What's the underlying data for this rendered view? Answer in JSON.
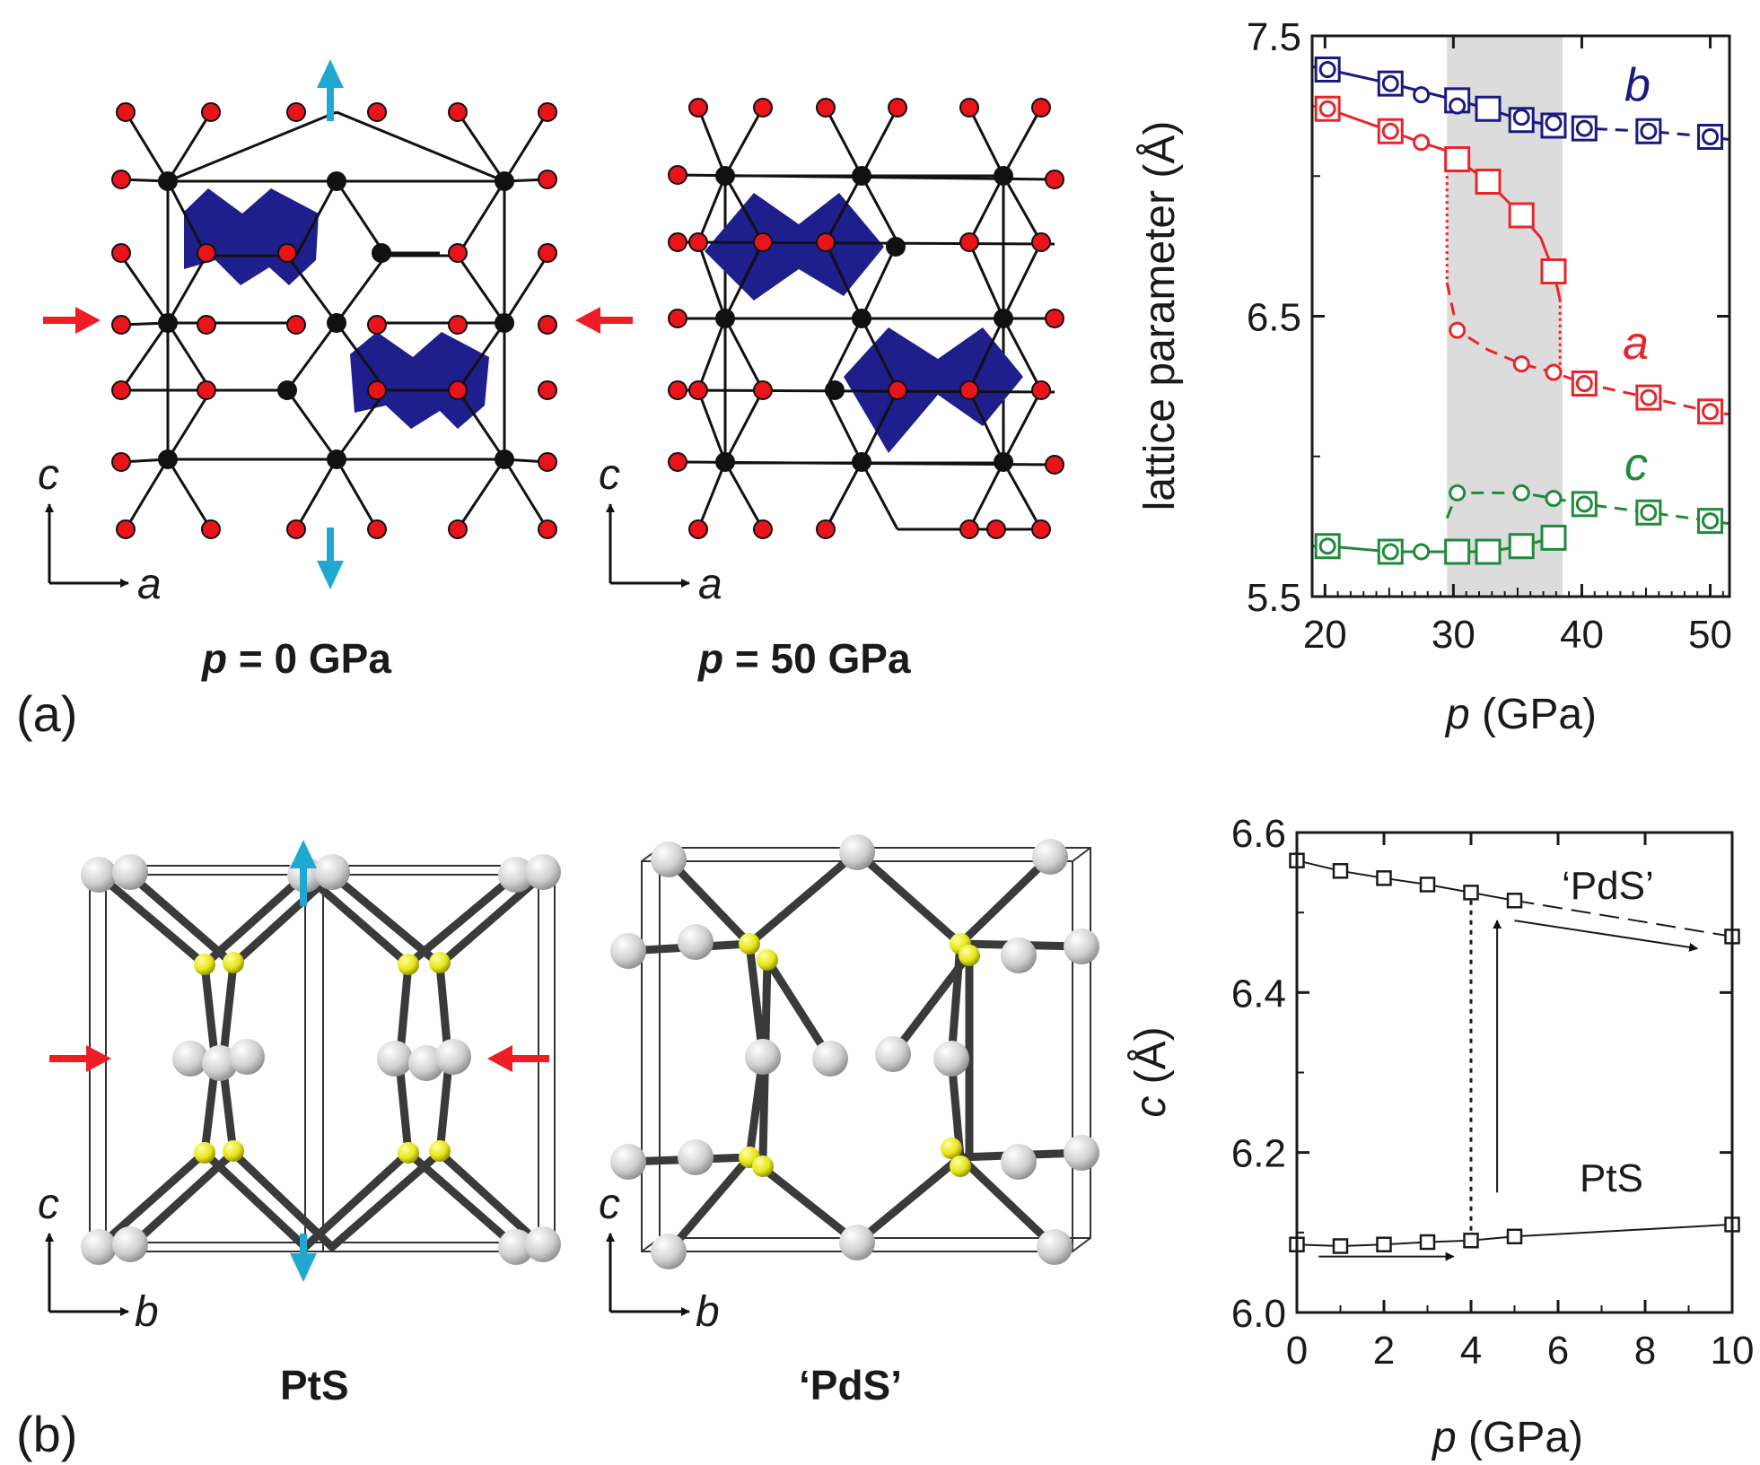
{
  "figure": {
    "panel_a_label": "(a)",
    "panel_b_label": "(b)",
    "structure_a_left_caption": {
      "var": "p",
      "rest": " = 0 GPa"
    },
    "structure_a_right_caption": {
      "var": "p",
      "rest": " = 50 GPa"
    },
    "structure_b_left_caption": "PtS",
    "structure_b_right_caption": "‘PdS’",
    "axes_a": {
      "vertical": "c",
      "horizontal": "a"
    },
    "axes_b": {
      "vertical": "c",
      "horizontal": "b"
    },
    "colors": {
      "a_series": "#e8262a",
      "b_series": "#1a1a80",
      "c_series": "#1e8a3a",
      "shade": "#dcdcdc",
      "polyhedra": "#1e1e8c",
      "pressure_arrow_red": "#ee1c24",
      "pressure_arrow_cyan": "#20a8d0",
      "atom_red": "#e8141a",
      "atom_black": "#111111",
      "atom_yellow": "#e6e619",
      "atom_grey": "#d8d8d8"
    }
  },
  "chart_data": [
    {
      "type": "line",
      "xlabel": {
        "var": "p",
        "rest": " (GPa)"
      },
      "ylabel": "lattice parameter (Å)",
      "xlim": [
        19,
        51.5
      ],
      "ylim": [
        5.5,
        7.5
      ],
      "xticks": [
        "20",
        "30",
        "40",
        "50"
      ],
      "yticks": [
        "5.5",
        "6.5",
        "7.5"
      ],
      "shaded_region": [
        29.5,
        38.5
      ],
      "series": [
        {
          "name": "b",
          "color_key": "b_series",
          "squares": [
            [
              20.2,
              7.38
            ],
            [
              25.1,
              7.33
            ],
            [
              30.3,
              7.27
            ],
            [
              32.7,
              7.24
            ],
            [
              35.3,
              7.2
            ],
            [
              37.8,
              7.18
            ],
            [
              40.2,
              7.17
            ],
            [
              45.2,
              7.16
            ],
            [
              50,
              7.14
            ]
          ],
          "circles": [
            [
              20.2,
              7.38
            ],
            [
              25.1,
              7.33
            ],
            [
              27.5,
              7.29
            ],
            [
              30.3,
              7.25
            ],
            [
              35.3,
              7.21
            ],
            [
              37.8,
              7.19
            ],
            [
              40.2,
              7.17
            ],
            [
              45.2,
              7.16
            ],
            [
              50,
              7.14
            ]
          ],
          "line_solid": [
            [
              19,
              7.39
            ],
            [
              20.2,
              7.38
            ],
            [
              25.1,
              7.33
            ],
            [
              30.3,
              7.27
            ],
            [
              32.7,
              7.24
            ],
            [
              35.3,
              7.2
            ],
            [
              37.8,
              7.18
            ]
          ],
          "line_dashed": [
            [
              37.8,
              7.18
            ],
            [
              40.2,
              7.17
            ],
            [
              45.2,
              7.16
            ],
            [
              50,
              7.14
            ],
            [
              51.5,
              7.13
            ]
          ]
        },
        {
          "name": "a",
          "color_key": "a_series",
          "squares": [
            [
              20.2,
              7.24
            ],
            [
              25.1,
              7.16
            ],
            [
              30.3,
              7.06
            ],
            [
              32.7,
              6.98
            ],
            [
              35.3,
              6.86
            ],
            [
              37.8,
              6.66
            ],
            [
              40.2,
              6.26
            ],
            [
              45.2,
              6.21
            ],
            [
              50,
              6.16
            ]
          ],
          "circles": [
            [
              20.2,
              7.24
            ],
            [
              25.1,
              7.16
            ],
            [
              27.5,
              7.12
            ],
            [
              30.3,
              6.45
            ],
            [
              35.3,
              6.33
            ],
            [
              37.8,
              6.3
            ],
            [
              40.2,
              6.26
            ],
            [
              45.2,
              6.21
            ],
            [
              50,
              6.16
            ]
          ],
          "line_solid": [
            [
              19,
              7.25
            ],
            [
              20.2,
              7.24
            ],
            [
              25.1,
              7.16
            ],
            [
              27.5,
              7.12
            ],
            [
              29.5,
              7.09
            ],
            [
              30.3,
              7.06
            ],
            [
              32.7,
              6.98
            ],
            [
              35.3,
              6.86
            ],
            [
              36.8,
              6.78
            ],
            [
              37.8,
              6.66
            ],
            [
              38.3,
              6.56
            ]
          ],
          "line_dashed": [
            [
              29.5,
              6.62
            ],
            [
              30.3,
              6.45
            ],
            [
              32.7,
              6.38
            ],
            [
              35.3,
              6.33
            ],
            [
              37.8,
              6.3
            ],
            [
              40.2,
              6.26
            ],
            [
              45.2,
              6.21
            ],
            [
              50,
              6.16
            ],
            [
              51.5,
              6.15
            ]
          ],
          "line_dotted": [
            [
              29.5,
              7.09
            ],
            [
              29.5,
              6.62
            ],
            [
              38.3,
              6.56
            ],
            [
              38.3,
              6.3
            ]
          ]
        },
        {
          "name": "c",
          "color_key": "c_series",
          "squares": [
            [
              20.2,
              5.68
            ],
            [
              25.1,
              5.66
            ],
            [
              30.3,
              5.66
            ],
            [
              32.7,
              5.66
            ],
            [
              35.3,
              5.68
            ],
            [
              37.8,
              5.71
            ],
            [
              40.2,
              5.83
            ],
            [
              45.2,
              5.8
            ],
            [
              50,
              5.77
            ]
          ],
          "circles": [
            [
              20.2,
              5.68
            ],
            [
              25.1,
              5.66
            ],
            [
              27.5,
              5.66
            ],
            [
              30.3,
              5.87
            ],
            [
              35.3,
              5.87
            ],
            [
              37.8,
              5.85
            ],
            [
              40.2,
              5.83
            ],
            [
              45.2,
              5.8
            ],
            [
              50,
              5.77
            ]
          ],
          "line_solid": [
            [
              19,
              5.68
            ],
            [
              20.2,
              5.68
            ],
            [
              25.1,
              5.66
            ],
            [
              29.5,
              5.66
            ],
            [
              32.7,
              5.66
            ],
            [
              35.3,
              5.68
            ],
            [
              37.8,
              5.71
            ]
          ],
          "line_dashed": [
            [
              29.5,
              5.78
            ],
            [
              30.3,
              5.87
            ],
            [
              35.3,
              5.87
            ],
            [
              37.8,
              5.85
            ],
            [
              40.2,
              5.83
            ],
            [
              45.2,
              5.8
            ],
            [
              50,
              5.77
            ],
            [
              51.5,
              5.76
            ]
          ]
        }
      ],
      "series_labels": {
        "b": "b",
        "a": "a",
        "c": "c"
      }
    },
    {
      "type": "line",
      "xlabel": {
        "var": "p",
        "rest": " (GPa)"
      },
      "ylabel": {
        "var": "c",
        "rest": " (Å)"
      },
      "xlim": [
        0,
        10
      ],
      "ylim": [
        6.0,
        6.6
      ],
      "xticks": [
        "0",
        "2",
        "4",
        "6",
        "8",
        "10"
      ],
      "yticks": [
        "6.0",
        "6.2",
        "6.4",
        "6.6"
      ],
      "series": [
        {
          "name": "PdS",
          "label": "‘PdS’",
          "points": [
            [
              0,
              6.565
            ],
            [
              1,
              6.552
            ],
            [
              2,
              6.543
            ],
            [
              3,
              6.535
            ],
            [
              4,
              6.525
            ],
            [
              5,
              6.515
            ],
            [
              10,
              6.47
            ]
          ]
        },
        {
          "name": "PtS",
          "label": "PtS",
          "points": [
            [
              0,
              6.085
            ],
            [
              1,
              6.083
            ],
            [
              2,
              6.085
            ],
            [
              3,
              6.088
            ],
            [
              4,
              6.09
            ],
            [
              5,
              6.095
            ],
            [
              10,
              6.11
            ]
          ]
        }
      ],
      "transition_line": {
        "p": 4,
        "from": 6.09,
        "to": 6.525
      }
    }
  ]
}
